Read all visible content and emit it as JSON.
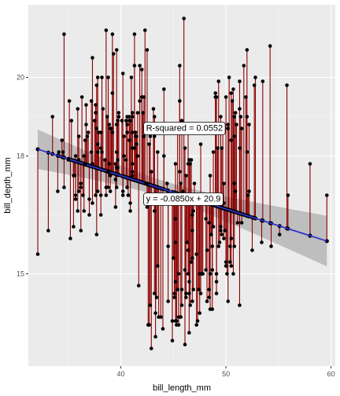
{
  "chart_data": {
    "type": "scatter",
    "xlabel": "bill_length_mm",
    "ylabel": "bill_depth_mm",
    "xlim": [
      31.2,
      60.4
    ],
    "ylim": [
      12.65,
      21.85
    ],
    "xticks": [
      40,
      50,
      60
    ],
    "yticks": [
      15,
      18,
      20
    ],
    "grid": true,
    "regression": {
      "slope": -0.085,
      "intercept": 20.9,
      "x_range": [
        32.1,
        59.6
      ],
      "ci_color": "#999999",
      "line_color": "#3333cc"
    },
    "residual_color": "#8b0000",
    "point_color": "#000000",
    "annotations": [
      {
        "label": "R-squared = 0.0552",
        "x": 42.4,
        "y": 18.7
      },
      {
        "label": "y = -0.0850x + 20.9",
        "x": 42.4,
        "y": 16.9
      }
    ],
    "points": [
      [
        32.1,
        15.5
      ],
      [
        33.1,
        16.1
      ],
      [
        33.5,
        19.0
      ],
      [
        34.0,
        17.1
      ],
      [
        34.1,
        18.1
      ],
      [
        34.4,
        18.4
      ],
      [
        34.5,
        18.1
      ],
      [
        34.6,
        21.1
      ],
      [
        34.6,
        17.2
      ],
      [
        35.0,
        17.9
      ],
      [
        35.1,
        19.4
      ],
      [
        35.2,
        15.9
      ],
      [
        35.3,
        18.9
      ],
      [
        35.5,
        17.5
      ],
      [
        35.5,
        16.2
      ],
      [
        35.6,
        17.5
      ],
      [
        35.7,
        16.9
      ],
      [
        35.7,
        17.0
      ],
      [
        35.7,
        18.0
      ],
      [
        35.9,
        16.6
      ],
      [
        35.9,
        19.2
      ],
      [
        36.0,
        17.9
      ],
      [
        36.0,
        18.5
      ],
      [
        36.0,
        17.1
      ],
      [
        36.2,
        17.3
      ],
      [
        36.2,
        16.1
      ],
      [
        36.2,
        17.2
      ],
      [
        36.3,
        19.5
      ],
      [
        36.4,
        17.0
      ],
      [
        36.5,
        18.0
      ],
      [
        36.5,
        16.6
      ],
      [
        36.6,
        17.8
      ],
      [
        36.6,
        18.4
      ],
      [
        36.7,
        19.3
      ],
      [
        36.7,
        18.8
      ],
      [
        36.8,
        18.5
      ],
      [
        36.9,
        18.6
      ],
      [
        37.0,
        16.9
      ],
      [
        37.0,
        16.5
      ],
      [
        37.2,
        18.1
      ],
      [
        37.2,
        19.4
      ],
      [
        37.3,
        17.8
      ],
      [
        37.3,
        16.8
      ],
      [
        37.3,
        20.5
      ],
      [
        37.5,
        18.9
      ],
      [
        37.6,
        19.3
      ],
      [
        37.6,
        17.0
      ],
      [
        37.6,
        19.1
      ],
      [
        37.7,
        18.7
      ],
      [
        37.7,
        19.8
      ],
      [
        37.7,
        16.0
      ],
      [
        37.8,
        18.3
      ],
      [
        37.8,
        17.1
      ],
      [
        37.8,
        20.0
      ],
      [
        37.8,
        18.1
      ],
      [
        37.9,
        18.6
      ],
      [
        38.1,
        18.6
      ],
      [
        38.1,
        16.5
      ],
      [
        38.1,
        17.0
      ],
      [
        38.1,
        18.2
      ],
      [
        38.2,
        18.1
      ],
      [
        38.2,
        20.0
      ],
      [
        38.3,
        19.2
      ],
      [
        38.5,
        17.9
      ],
      [
        38.6,
        21.2
      ],
      [
        38.6,
        17.2
      ],
      [
        38.6,
        17.0
      ],
      [
        38.7,
        19.0
      ],
      [
        38.8,
        17.2
      ],
      [
        38.8,
        20.0
      ],
      [
        38.8,
        17.6
      ],
      [
        38.9,
        17.8
      ],
      [
        38.9,
        18.8
      ],
      [
        39.0,
        17.1
      ],
      [
        39.0,
        17.5
      ],
      [
        39.0,
        18.7
      ],
      [
        39.1,
        18.7
      ],
      [
        39.2,
        19.6
      ],
      [
        39.2,
        18.6
      ],
      [
        39.2,
        21.1
      ],
      [
        39.3,
        20.6
      ],
      [
        39.5,
        16.7
      ],
      [
        39.5,
        17.8
      ],
      [
        39.5,
        17.4
      ],
      [
        39.6,
        17.7
      ],
      [
        39.6,
        18.8
      ],
      [
        39.6,
        20.7
      ],
      [
        39.6,
        17.2
      ],
      [
        39.6,
        18.1
      ],
      [
        39.7,
        18.9
      ],
      [
        39.7,
        17.7
      ],
      [
        39.7,
        17.9
      ],
      [
        39.8,
        19.1
      ],
      [
        39.8,
        19.0
      ],
      [
        40.1,
        18.9
      ],
      [
        40.2,
        17.0
      ],
      [
        40.2,
        17.1
      ],
      [
        40.2,
        20.1
      ],
      [
        40.3,
        18.0
      ],
      [
        40.3,
        18.5
      ],
      [
        40.5,
        18.9
      ],
      [
        40.5,
        17.9
      ],
      [
        40.6,
        18.6
      ],
      [
        40.6,
        17.2
      ],
      [
        40.6,
        19.0
      ],
      [
        40.6,
        18.8
      ],
      [
        40.7,
        17.0
      ],
      [
        40.8,
        18.4
      ],
      [
        40.8,
        18.9
      ],
      [
        40.8,
        19.0
      ],
      [
        40.9,
        16.6
      ],
      [
        40.9,
        18.9
      ],
      [
        40.9,
        16.8
      ],
      [
        41.0,
        20.0
      ],
      [
        41.1,
        17.6
      ],
      [
        41.1,
        19.0
      ],
      [
        41.1,
        18.2
      ],
      [
        41.1,
        19.1
      ],
      [
        41.1,
        17.5
      ],
      [
        41.1,
        18.6
      ],
      [
        41.1,
        17.8
      ],
      [
        41.3,
        18.2
      ],
      [
        41.3,
        20.3
      ],
      [
        41.3,
        21.1
      ],
      [
        41.4,
        18.6
      ],
      [
        41.4,
        18.5
      ],
      [
        41.5,
        18.3
      ],
      [
        41.5,
        18.5
      ],
      [
        41.6,
        18.0
      ],
      [
        41.6,
        19.1
      ],
      [
        41.7,
        14.7
      ],
      [
        41.8,
        19.4
      ],
      [
        41.8,
        20.3
      ],
      [
        42.0,
        20.2
      ],
      [
        42.0,
        19.5
      ],
      [
        42.1,
        19.1
      ],
      [
        42.2,
        18.5
      ],
      [
        42.2,
        19.5
      ],
      [
        42.3,
        21.2
      ],
      [
        42.4,
        17.3
      ],
      [
        42.5,
        20.7
      ],
      [
        42.5,
        16.7
      ],
      [
        42.5,
        17.3
      ],
      [
        42.6,
        13.7
      ],
      [
        42.7,
        18.3
      ],
      [
        42.7,
        13.7
      ],
      [
        42.8,
        18.5
      ],
      [
        42.8,
        14.2
      ],
      [
        42.9,
        17.6
      ],
      [
        42.9,
        13.1
      ],
      [
        43.1,
        19.2
      ],
      [
        43.2,
        18.5
      ],
      [
        43.2,
        16.6
      ],
      [
        43.2,
        14.5
      ],
      [
        43.2,
        19.0
      ],
      [
        43.3,
        14.0
      ],
      [
        43.3,
        13.4
      ],
      [
        43.4,
        14.4
      ],
      [
        43.5,
        15.2
      ],
      [
        43.5,
        18.1
      ],
      [
        43.6,
        13.9
      ],
      [
        43.8,
        13.9
      ],
      [
        44.0,
        13.6
      ],
      [
        44.1,
        19.7
      ],
      [
        44.1,
        18.0
      ],
      [
        44.4,
        17.3
      ],
      [
        44.5,
        15.7
      ],
      [
        44.5,
        14.3
      ],
      [
        44.9,
        13.8
      ],
      [
        44.9,
        13.3
      ],
      [
        45.0,
        15.4
      ],
      [
        45.1,
        14.5
      ],
      [
        45.1,
        14.4
      ],
      [
        45.2,
        17.8
      ],
      [
        45.2,
        13.8
      ],
      [
        45.2,
        14.8
      ],
      [
        45.2,
        15.8
      ],
      [
        45.2,
        16.4
      ],
      [
        45.3,
        13.7
      ],
      [
        45.3,
        13.8
      ],
      [
        45.4,
        14.6
      ],
      [
        45.4,
        18.7
      ],
      [
        45.5,
        17.0
      ],
      [
        45.5,
        13.7
      ],
      [
        45.5,
        13.9
      ],
      [
        45.5,
        15.0
      ],
      [
        45.6,
        19.4
      ],
      [
        45.6,
        20.3
      ],
      [
        45.6,
        17.6
      ],
      [
        45.7,
        13.9
      ],
      [
        45.7,
        17.0
      ],
      [
        45.7,
        17.3
      ],
      [
        45.8,
        14.6
      ],
      [
        45.8,
        14.2
      ],
      [
        45.8,
        18.9
      ],
      [
        45.9,
        17.1
      ],
      [
        46.0,
        21.5
      ],
      [
        46.1,
        13.2
      ],
      [
        46.1,
        15.1
      ],
      [
        46.1,
        18.2
      ],
      [
        46.2,
        14.4
      ],
      [
        46.2,
        17.5
      ],
      [
        46.2,
        14.5
      ],
      [
        46.3,
        15.8
      ],
      [
        46.4,
        15.0
      ],
      [
        46.4,
        15.6
      ],
      [
        46.4,
        17.8
      ],
      [
        46.4,
        18.6
      ],
      [
        46.5,
        17.9
      ],
      [
        46.5,
        14.5
      ],
      [
        46.5,
        13.5
      ],
      [
        46.5,
        14.8
      ],
      [
        46.6,
        17.8
      ],
      [
        46.6,
        14.2
      ],
      [
        46.7,
        15.3
      ],
      [
        46.7,
        17.9
      ],
      [
        46.8,
        14.3
      ],
      [
        46.8,
        15.4
      ],
      [
        46.8,
        16.1
      ],
      [
        46.8,
        16.5
      ],
      [
        46.9,
        14.6
      ],
      [
        46.9,
        16.6
      ],
      [
        47.0,
        17.3
      ],
      [
        47.2,
        13.7
      ],
      [
        47.2,
        15.5
      ],
      [
        47.3,
        13.8
      ],
      [
        47.4,
        14.6
      ],
      [
        47.5,
        14.0
      ],
      [
        47.5,
        15.0
      ],
      [
        47.5,
        16.8
      ],
      [
        47.6,
        14.5
      ],
      [
        47.6,
        18.3
      ],
      [
        47.7,
        15.0
      ],
      [
        47.8,
        15.0
      ],
      [
        48.1,
        15.1
      ],
      [
        48.1,
        16.4
      ],
      [
        48.2,
        14.3
      ],
      [
        48.2,
        15.6
      ],
      [
        48.4,
        14.4
      ],
      [
        48.4,
        14.6
      ],
      [
        48.4,
        16.3
      ],
      [
        48.5,
        14.1
      ],
      [
        48.5,
        15.0
      ],
      [
        48.5,
        17.5
      ],
      [
        48.6,
        16.0
      ],
      [
        48.7,
        14.1
      ],
      [
        48.7,
        15.1
      ],
      [
        48.7,
        15.7
      ],
      [
        48.8,
        16.2
      ],
      [
        48.8,
        18.1
      ],
      [
        49.0,
        19.5
      ],
      [
        49.0,
        19.6
      ],
      [
        49.1,
        14.5
      ],
      [
        49.1,
        14.8
      ],
      [
        49.1,
        15.0
      ],
      [
        49.1,
        19.5
      ],
      [
        49.2,
        18.2
      ],
      [
        49.3,
        19.9
      ],
      [
        49.3,
        15.7
      ],
      [
        49.4,
        15.8
      ],
      [
        49.5,
        16.1
      ],
      [
        49.5,
        19.0
      ],
      [
        49.5,
        16.2
      ],
      [
        49.6,
        16.0
      ],
      [
        49.6,
        18.2
      ],
      [
        49.7,
        18.6
      ],
      [
        49.8,
        15.9
      ],
      [
        49.8,
        17.3
      ],
      [
        49.8,
        16.8
      ],
      [
        49.9,
        16.1
      ],
      [
        50.0,
        15.2
      ],
      [
        50.0,
        15.3
      ],
      [
        50.0,
        19.5
      ],
      [
        50.1,
        15.0
      ],
      [
        50.2,
        14.3
      ],
      [
        50.2,
        18.7
      ],
      [
        50.2,
        18.8
      ],
      [
        50.3,
        20.0
      ],
      [
        50.4,
        15.3
      ],
      [
        50.4,
        15.7
      ],
      [
        50.5,
        15.2
      ],
      [
        50.5,
        15.9
      ],
      [
        50.5,
        18.4
      ],
      [
        50.5,
        19.6
      ],
      [
        50.6,
        19.4
      ],
      [
        50.7,
        15.0
      ],
      [
        50.7,
        19.7
      ],
      [
        50.8,
        15.7
      ],
      [
        50.8,
        17.3
      ],
      [
        50.8,
        18.5
      ],
      [
        50.8,
        19.0
      ],
      [
        50.9,
        17.1
      ],
      [
        50.9,
        19.1
      ],
      [
        51.0,
        18.8
      ],
      [
        51.1,
        16.3
      ],
      [
        51.3,
        14.2
      ],
      [
        51.3,
        18.2
      ],
      [
        51.3,
        19.2
      ],
      [
        51.3,
        19.9
      ],
      [
        51.4,
        19.0
      ],
      [
        51.5,
        16.3
      ],
      [
        51.5,
        18.7
      ],
      [
        51.7,
        20.3
      ],
      [
        51.9,
        19.5
      ],
      [
        52.0,
        18.1
      ],
      [
        52.0,
        19.0
      ],
      [
        52.0,
        20.7
      ],
      [
        52.1,
        17.0
      ],
      [
        52.2,
        17.1
      ],
      [
        52.2,
        18.8
      ],
      [
        52.5,
        15.6
      ],
      [
        52.7,
        19.8
      ],
      [
        52.8,
        20.0
      ],
      [
        53.4,
        15.8
      ],
      [
        53.5,
        19.9
      ],
      [
        54.2,
        20.8
      ],
      [
        54.3,
        15.7
      ],
      [
        55.1,
        16.0
      ],
      [
        55.8,
        19.8
      ],
      [
        55.9,
        17.0
      ],
      [
        58.0,
        17.8
      ],
      [
        59.6,
        17.0
      ]
    ]
  }
}
